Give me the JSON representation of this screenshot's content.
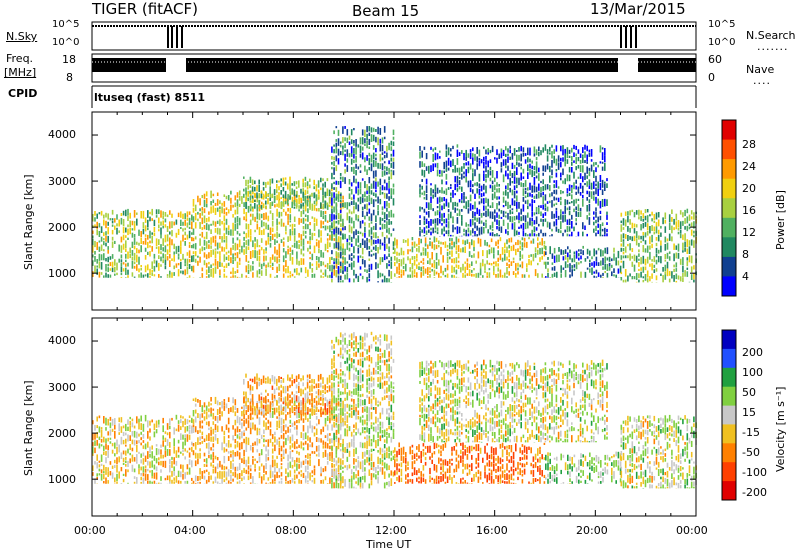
{
  "header": {
    "radar": "TIGER (fitACF)",
    "beam": "Beam 15",
    "date": "13/Mar/2015"
  },
  "top_panels": {
    "nsky_label": "N.Sky",
    "nsky_ticks": [
      "10^5",
      "10^0"
    ],
    "nsearch_label": "N.Search",
    "nsearch_ticks": [
      "10^5",
      "10^0"
    ],
    "freq_label": "Freq.",
    "freq_unit": "[MHz]",
    "freq_ticks": [
      "18",
      "8"
    ],
    "nave_label": "Nave",
    "nave_ticks": [
      "60",
      "0"
    ],
    "cpid_label": "CPID",
    "cpid_value": "ltuseq (fast) 8511"
  },
  "chart_data": [
    {
      "type": "heatmap",
      "panel": "power",
      "ylabel": "Slant Range [km]",
      "y_ticks": [
        "4000",
        "3000",
        "2000",
        "1000"
      ],
      "ylim": [
        200,
        4500
      ],
      "xlim": [
        "00:00",
        "24:00"
      ],
      "colorbar_label": "Power [dB]",
      "colorbar_ticks": [
        "28",
        "24",
        "20",
        "16",
        "12",
        "8",
        "4"
      ],
      "colorbar_colors": [
        "#e00000",
        "#ff5000",
        "#ff9a00",
        "#f0d010",
        "#a8d040",
        "#50b060",
        "#208860",
        "#104090",
        "#0000ff"
      ],
      "bands": [
        {
          "t_start": 0.0,
          "t_end": 4.0,
          "r_low": 900,
          "r_high": 2400,
          "level": 16
        },
        {
          "t_start": 4.0,
          "t_end": 10.0,
          "r_low": 900,
          "r_high": 2800,
          "level": 18
        },
        {
          "t_start": 6.0,
          "t_end": 9.5,
          "r_low": 2400,
          "r_high": 3100,
          "level": 14
        },
        {
          "t_start": 9.5,
          "t_end": 12.0,
          "r_low": 800,
          "r_high": 4200,
          "level": 8
        },
        {
          "t_start": 12.0,
          "t_end": 18.0,
          "r_low": 900,
          "r_high": 1800,
          "level": 18
        },
        {
          "t_start": 13.0,
          "t_end": 20.5,
          "r_low": 1800,
          "r_high": 3800,
          "level": 6
        },
        {
          "t_start": 18.0,
          "t_end": 21.0,
          "r_low": 900,
          "r_high": 1600,
          "level": 8
        },
        {
          "t_start": 21.0,
          "t_end": 24.0,
          "r_low": 800,
          "r_high": 2400,
          "level": 14
        }
      ]
    },
    {
      "type": "heatmap",
      "panel": "velocity",
      "ylabel": "Slant Range [km]",
      "y_ticks": [
        "4000",
        "3000",
        "2000",
        "1000"
      ],
      "ylim": [
        200,
        4500
      ],
      "xlim": [
        "00:00",
        "24:00"
      ],
      "colorbar_label": "Velocity [m s⁻¹]",
      "colorbar_ticks": [
        "200",
        "100",
        "50",
        "15",
        "-15",
        "-50",
        "-100",
        "-200"
      ],
      "colorbar_colors": [
        "#0000c0",
        "#2050ff",
        "#20a040",
        "#80d040",
        "#c8c8c8",
        "#f0c020",
        "#ff8000",
        "#ff4000",
        "#e00000"
      ],
      "bands": [
        {
          "t_start": 0.0,
          "t_end": 4.0,
          "r_low": 900,
          "r_high": 2400,
          "level": -15
        },
        {
          "t_start": 4.0,
          "t_end": 10.0,
          "r_low": 900,
          "r_high": 2800,
          "level": -40
        },
        {
          "t_start": 6.0,
          "t_end": 9.5,
          "r_low": 2400,
          "r_high": 3300,
          "level": -50
        },
        {
          "t_start": 9.5,
          "t_end": 12.0,
          "r_low": 800,
          "r_high": 4200,
          "level": 0
        },
        {
          "t_start": 12.0,
          "t_end": 18.0,
          "r_low": 900,
          "r_high": 1800,
          "level": -90
        },
        {
          "t_start": 13.0,
          "t_end": 20.5,
          "r_low": 1800,
          "r_high": 3600,
          "level": 0
        },
        {
          "t_start": 18.0,
          "t_end": 21.0,
          "r_low": 900,
          "r_high": 1600,
          "level": 30
        },
        {
          "t_start": 21.0,
          "t_end": 24.0,
          "r_low": 800,
          "r_high": 2400,
          "level": 0
        }
      ]
    }
  ],
  "x_axis": {
    "ticks": [
      "00:00",
      "04:00",
      "08:00",
      "12:00",
      "16:00",
      "20:00",
      "00:00"
    ],
    "label": "Time UT"
  }
}
